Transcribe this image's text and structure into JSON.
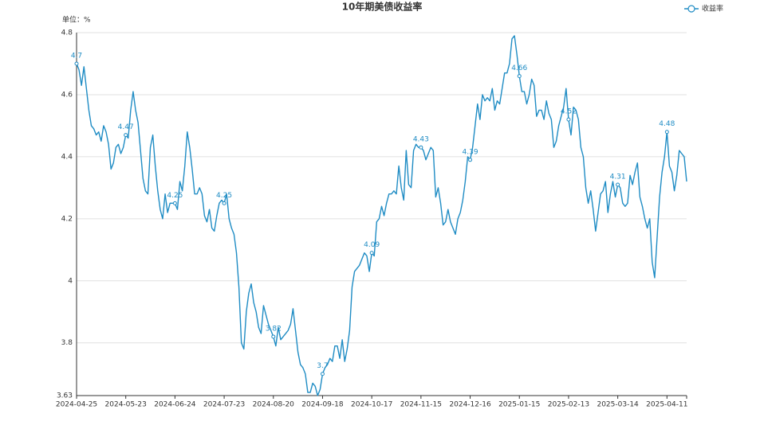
{
  "chart_data": {
    "type": "line",
    "title": "10年期美债收益率",
    "y_unit_label": "单位：%",
    "categories": [
      "2024-04-25",
      null,
      null,
      null,
      null,
      null,
      null,
      null,
      null,
      null,
      null,
      null,
      null,
      null,
      null,
      null,
      null,
      null,
      null,
      null,
      "2024-05-23",
      null,
      null,
      null,
      null,
      null,
      null,
      null,
      null,
      null,
      null,
      null,
      null,
      null,
      null,
      null,
      null,
      null,
      null,
      null,
      "2024-06-24",
      null,
      null,
      null,
      null,
      null,
      null,
      null,
      null,
      null,
      null,
      null,
      null,
      null,
      null,
      null,
      null,
      null,
      null,
      null,
      "2024-07-23",
      null,
      null,
      null,
      null,
      null,
      null,
      null,
      null,
      null,
      null,
      null,
      null,
      null,
      null,
      null,
      null,
      null,
      null,
      null,
      "2024-08-20",
      null,
      null,
      null,
      null,
      null,
      null,
      null,
      null,
      null,
      null,
      null,
      null,
      null,
      null,
      null,
      null,
      null,
      null,
      null,
      "2024-09-18",
      null,
      null,
      null,
      null,
      null,
      null,
      null,
      null,
      null,
      null,
      null,
      null,
      null,
      null,
      null,
      null,
      null,
      null,
      null,
      "2024-10-17",
      null,
      null,
      null,
      null,
      null,
      null,
      null,
      null,
      null,
      null,
      null,
      null,
      null,
      null,
      null,
      null,
      null,
      null,
      null,
      "2024-11-15",
      null,
      null,
      null,
      null,
      null,
      null,
      null,
      null,
      null,
      null,
      null,
      null,
      null,
      null,
      null,
      null,
      null,
      null,
      null,
      "2024-12-16",
      null,
      null,
      null,
      null,
      null,
      null,
      null,
      null,
      null,
      null,
      null,
      null,
      null,
      null,
      null,
      null,
      null,
      null,
      null,
      "2025-01-15",
      null,
      null,
      null,
      null,
      null,
      null,
      null,
      null,
      null,
      null,
      null,
      null,
      null,
      null,
      null,
      null,
      null,
      null,
      null,
      "2025-02-13",
      null,
      null,
      null,
      null,
      null,
      null,
      null,
      null,
      null,
      null,
      null,
      null,
      null,
      null,
      null,
      null,
      null,
      null,
      null,
      "2025-03-14",
      null,
      null,
      null,
      null,
      null,
      null,
      null,
      null,
      null,
      null,
      null,
      null,
      null,
      null,
      null,
      null,
      null,
      null,
      null,
      "2025-04-11",
      null,
      null,
      null,
      null,
      null,
      null,
      null,
      null
    ],
    "series": [
      {
        "name": "收益率",
        "color": "#1f8cc4",
        "values": [
          4.7,
          4.68,
          4.63,
          4.69,
          4.62,
          4.55,
          4.5,
          4.49,
          4.47,
          4.48,
          4.45,
          4.5,
          4.48,
          4.44,
          4.36,
          4.38,
          4.43,
          4.44,
          4.41,
          4.43,
          4.47,
          4.46,
          4.55,
          4.61,
          4.55,
          4.51,
          4.42,
          4.33,
          4.29,
          4.28,
          4.43,
          4.47,
          4.37,
          4.29,
          4.23,
          4.2,
          4.28,
          4.22,
          4.25,
          4.25,
          4.25,
          4.23,
          4.32,
          4.29,
          4.37,
          4.48,
          4.43,
          4.36,
          4.28,
          4.28,
          4.3,
          4.28,
          4.21,
          4.19,
          4.23,
          4.17,
          4.16,
          4.21,
          4.25,
          4.26,
          4.25,
          4.28,
          4.2,
          4.17,
          4.15,
          4.09,
          3.98,
          3.8,
          3.78,
          3.9,
          3.96,
          3.99,
          3.93,
          3.9,
          3.85,
          3.83,
          3.92,
          3.89,
          3.86,
          3.84,
          3.82,
          3.79,
          3.85,
          3.81,
          3.82,
          3.83,
          3.84,
          3.86,
          3.91,
          3.84,
          3.77,
          3.73,
          3.72,
          3.7,
          3.64,
          3.64,
          3.67,
          3.66,
          3.63,
          3.65,
          3.7,
          3.72,
          3.73,
          3.75,
          3.74,
          3.79,
          3.79,
          3.75,
          3.81,
          3.74,
          3.78,
          3.84,
          3.98,
          4.03,
          4.04,
          4.05,
          4.07,
          4.09,
          4.08,
          4.03,
          4.09,
          4.08,
          4.19,
          4.2,
          4.24,
          4.21,
          4.25,
          4.28,
          4.28,
          4.29,
          4.28,
          4.37,
          4.3,
          4.26,
          4.42,
          4.31,
          4.3,
          4.42,
          4.44,
          4.43,
          4.43,
          4.42,
          4.39,
          4.41,
          4.43,
          4.42,
          4.27,
          4.3,
          4.25,
          4.18,
          4.19,
          4.23,
          4.19,
          4.17,
          4.15,
          4.2,
          4.22,
          4.26,
          4.32,
          4.4,
          4.39,
          4.43,
          4.5,
          4.57,
          4.52,
          4.6,
          4.58,
          4.59,
          4.58,
          4.62,
          4.55,
          4.58,
          4.57,
          4.62,
          4.67,
          4.67,
          4.7,
          4.78,
          4.79,
          4.73,
          4.66,
          4.61,
          4.61,
          4.57,
          4.6,
          4.65,
          4.63,
          4.53,
          4.55,
          4.55,
          4.52,
          4.58,
          4.54,
          4.52,
          4.43,
          4.45,
          4.5,
          4.53,
          4.56,
          4.62,
          4.52,
          4.47,
          4.56,
          4.55,
          4.52,
          4.43,
          4.4,
          4.3,
          4.25,
          4.29,
          4.23,
          4.16,
          4.22,
          4.28,
          4.29,
          4.32,
          4.22,
          4.28,
          4.32,
          4.27,
          4.31,
          4.3,
          4.25,
          4.24,
          4.25,
          4.34,
          4.31,
          4.35,
          4.38,
          4.27,
          4.24,
          4.2,
          4.17,
          4.2,
          4.06,
          4.01,
          4.14,
          4.27,
          4.35,
          4.4,
          4.48,
          4.37,
          4.35,
          4.29,
          4.34,
          4.42,
          4.41,
          4.4,
          4.32
        ],
        "value_labels": [
          "4.7",
          null,
          null,
          null,
          null,
          null,
          null,
          null,
          null,
          null,
          null,
          null,
          null,
          null,
          null,
          null,
          null,
          null,
          null,
          null,
          "4.47",
          null,
          null,
          null,
          null,
          null,
          null,
          null,
          null,
          null,
          null,
          null,
          null,
          null,
          null,
          null,
          null,
          null,
          null,
          null,
          "4.25",
          null,
          null,
          null,
          null,
          null,
          null,
          null,
          null,
          null,
          null,
          null,
          null,
          null,
          null,
          null,
          null,
          null,
          null,
          null,
          "4.25",
          null,
          null,
          null,
          null,
          null,
          null,
          null,
          null,
          null,
          null,
          null,
          null,
          null,
          null,
          null,
          null,
          null,
          null,
          null,
          "3.82",
          null,
          null,
          null,
          null,
          null,
          null,
          null,
          null,
          null,
          null,
          null,
          null,
          null,
          null,
          null,
          null,
          null,
          null,
          null,
          "3.7",
          null,
          null,
          null,
          null,
          null,
          null,
          null,
          null,
          null,
          null,
          null,
          null,
          null,
          null,
          null,
          null,
          null,
          null,
          null,
          "4.09",
          null,
          null,
          null,
          null,
          null,
          null,
          null,
          null,
          null,
          null,
          null,
          null,
          null,
          null,
          null,
          null,
          null,
          null,
          null,
          "4.43",
          null,
          null,
          null,
          null,
          null,
          null,
          null,
          null,
          null,
          null,
          null,
          null,
          null,
          null,
          null,
          null,
          null,
          null,
          null,
          "4.39",
          null,
          null,
          null,
          null,
          null,
          null,
          null,
          null,
          null,
          null,
          null,
          null,
          null,
          null,
          null,
          null,
          null,
          null,
          null,
          "4.66",
          null,
          null,
          null,
          null,
          null,
          null,
          null,
          null,
          null,
          null,
          null,
          null,
          null,
          null,
          null,
          null,
          null,
          null,
          null,
          "4.52",
          null,
          null,
          null,
          null,
          null,
          null,
          null,
          null,
          null,
          null,
          null,
          null,
          null,
          null,
          null,
          null,
          null,
          null,
          null,
          "4.31",
          null,
          null,
          null,
          null,
          null,
          null,
          null,
          null,
          null,
          null,
          null,
          null,
          null,
          null,
          null,
          null,
          null,
          null,
          null,
          "4.48",
          null,
          null,
          null,
          null,
          null,
          null,
          null,
          null
        ]
      }
    ],
    "ylim": [
      3.63,
      4.8
    ],
    "yticks": [
      3.63,
      3.8,
      4,
      4.2,
      4.4,
      4.6,
      4.8
    ],
    "grid": true,
    "legend": "top-right"
  }
}
